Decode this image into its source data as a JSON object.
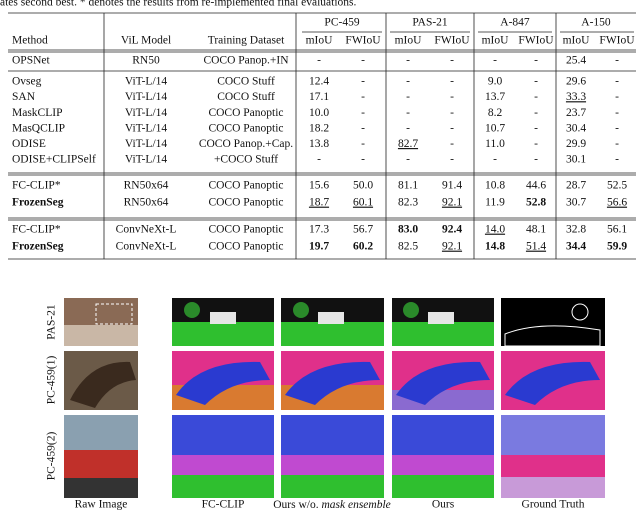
{
  "caption_fragment": "ates second best. * denotes the results from re-implemented final evaluations.",
  "table": {
    "header": {
      "groups": [
        "PC-459",
        "PAS-21",
        "A-847",
        "A-150"
      ],
      "columns": [
        "Method",
        "ViL Model",
        "Training Dataset",
        "mIoU",
        "FWIoU",
        "mIoU",
        "FWIoU",
        "mIoU",
        "FWIoU",
        "mIoU",
        "FWIoU"
      ]
    },
    "row_groups": [
      [
        [
          "OPSNet",
          "RN50",
          "COCO Panop.+IN",
          "-",
          "-",
          "-",
          "-",
          "-",
          "-",
          "25.4",
          "-"
        ]
      ],
      [
        [
          "Ovseg",
          "ViT-L/14",
          "COCO Stuff",
          "12.4",
          "-",
          "-",
          "-",
          "9.0",
          "-",
          "29.6",
          "-"
        ],
        [
          "SAN",
          "ViT-L/14",
          "COCO Stuff",
          "17.1",
          "-",
          "-",
          "-",
          "13.7",
          "-",
          {
            "text": "33.3",
            "style": "underline"
          },
          "-"
        ],
        [
          "MaskCLIP",
          "ViT-L/14",
          "COCO Panoptic",
          "10.0",
          "-",
          "-",
          "-",
          "8.2",
          "-",
          "23.7",
          "-"
        ],
        [
          "MasQCLIP",
          "ViT-L/14",
          "COCO Panoptic",
          "18.2",
          "-",
          "-",
          "-",
          "10.7",
          "-",
          "30.4",
          "-"
        ],
        [
          "ODISE",
          "ViT-L/14",
          "COCO Panop.+Cap.",
          "13.8",
          "-",
          {
            "text": "82.7",
            "style": "underline"
          },
          "-",
          "11.0",
          "-",
          "29.9",
          "-"
        ],
        [
          "ODISE+CLIPSelf",
          "ViT-L/14",
          "+COCO Stuff",
          "-",
          "-",
          "-",
          "-",
          "-",
          "-",
          "30.1",
          "-"
        ]
      ],
      [
        [
          "FC-CLIP*",
          "RN50x64",
          "COCO Panoptic",
          "15.6",
          "50.0",
          "81.1",
          "91.4",
          "10.8",
          "44.6",
          "28.7",
          "52.5"
        ],
        [
          {
            "text": "FrozenSeg",
            "style": "bold"
          },
          "RN50x64",
          "COCO Panoptic",
          {
            "text": "18.7",
            "style": "underline"
          },
          {
            "text": "60.1",
            "style": "underline"
          },
          "82.3",
          {
            "text": "92.1",
            "style": "underline"
          },
          "11.9",
          {
            "text": "52.8",
            "style": "bold"
          },
          "30.7",
          {
            "text": "56.6",
            "style": "underline"
          }
        ]
      ],
      [
        [
          "FC-CLIP*",
          "ConvNeXt-L",
          "COCO Panoptic",
          "17.3",
          "56.7",
          {
            "text": "83.0",
            "style": "bold"
          },
          {
            "text": "92.4",
            "style": "bold"
          },
          {
            "text": "14.0",
            "style": "underline"
          },
          "48.1",
          "32.8",
          "56.1"
        ],
        [
          {
            "text": "FrozenSeg",
            "style": "bold"
          },
          "ConvNeXt-L",
          "COCO Panoptic",
          {
            "text": "19.7",
            "style": "bold"
          },
          {
            "text": "60.2",
            "style": "bold"
          },
          "82.5",
          {
            "text": "92.1",
            "style": "underline"
          },
          {
            "text": "14.8",
            "style": "bold"
          },
          {
            "text": "51.4",
            "style": "underline"
          },
          {
            "text": "34.4",
            "style": "bold"
          },
          {
            "text": "59.9",
            "style": "bold"
          }
        ]
      ]
    ]
  },
  "figure": {
    "row_labels": [
      "PAS-21",
      "PC-459(1)",
      "PC-459(2)"
    ],
    "column_captions": [
      "Raw Image",
      "FC-CLIP",
      [
        "Ours w/o. ",
        "mask ensemble"
      ],
      "Ours",
      "Ground Truth"
    ]
  }
}
